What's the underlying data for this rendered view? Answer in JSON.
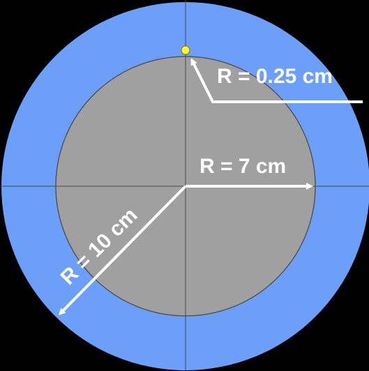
{
  "diagram": {
    "labels": {
      "small_radius": "R = 0.25 cm",
      "inner_radius": "R = 7 cm",
      "outer_radius": "R = 10 cm"
    },
    "colors": {
      "background": "#000000",
      "outer_disk": "#6b9ff9",
      "inner_disk": "#a0a0a0",
      "small_circle": "#ffff33",
      "arrows": "#ffffff",
      "crosshair": "#4a4a4a"
    }
  }
}
